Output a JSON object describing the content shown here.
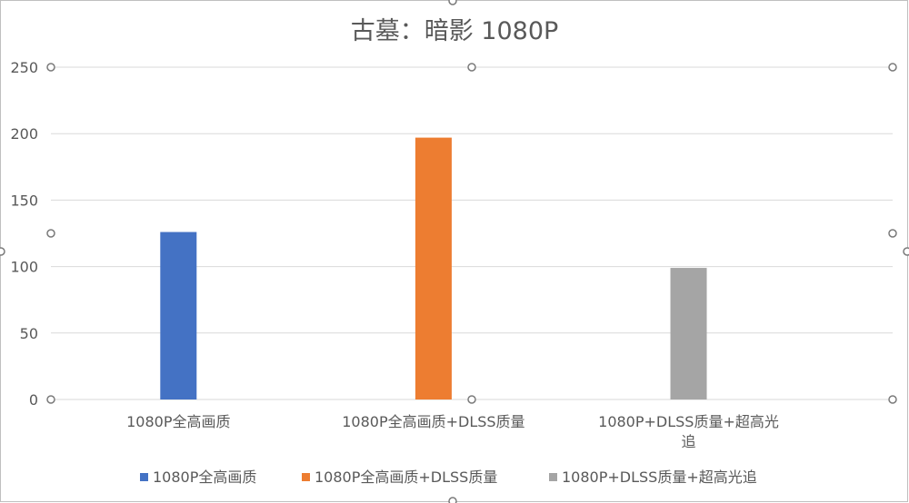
{
  "chart_data": {
    "type": "bar",
    "title": "古墓：暗影 1080P",
    "xlabel": "",
    "ylabel": "",
    "ylim": [
      0,
      250
    ],
    "yticks": [
      0,
      50,
      100,
      150,
      200,
      250
    ],
    "grid": true,
    "legend_position": "bottom",
    "categories": [
      [
        "1080P全高画质"
      ],
      [
        "1080P全高画质+DLSS质量"
      ],
      [
        "1080P+DLSS质量+超高光",
        "追"
      ]
    ],
    "series": [
      {
        "name": "1080P全高画质",
        "color": "#4472C4",
        "values": [
          126,
          null,
          null
        ]
      },
      {
        "name": "1080P全高画质+DLSS质量",
        "color": "#ED7D31",
        "values": [
          null,
          197,
          null
        ]
      },
      {
        "name": "1080P+DLSS质量+超高光追",
        "color": "#A5A5A5",
        "values": [
          null,
          null,
          99
        ]
      }
    ]
  }
}
